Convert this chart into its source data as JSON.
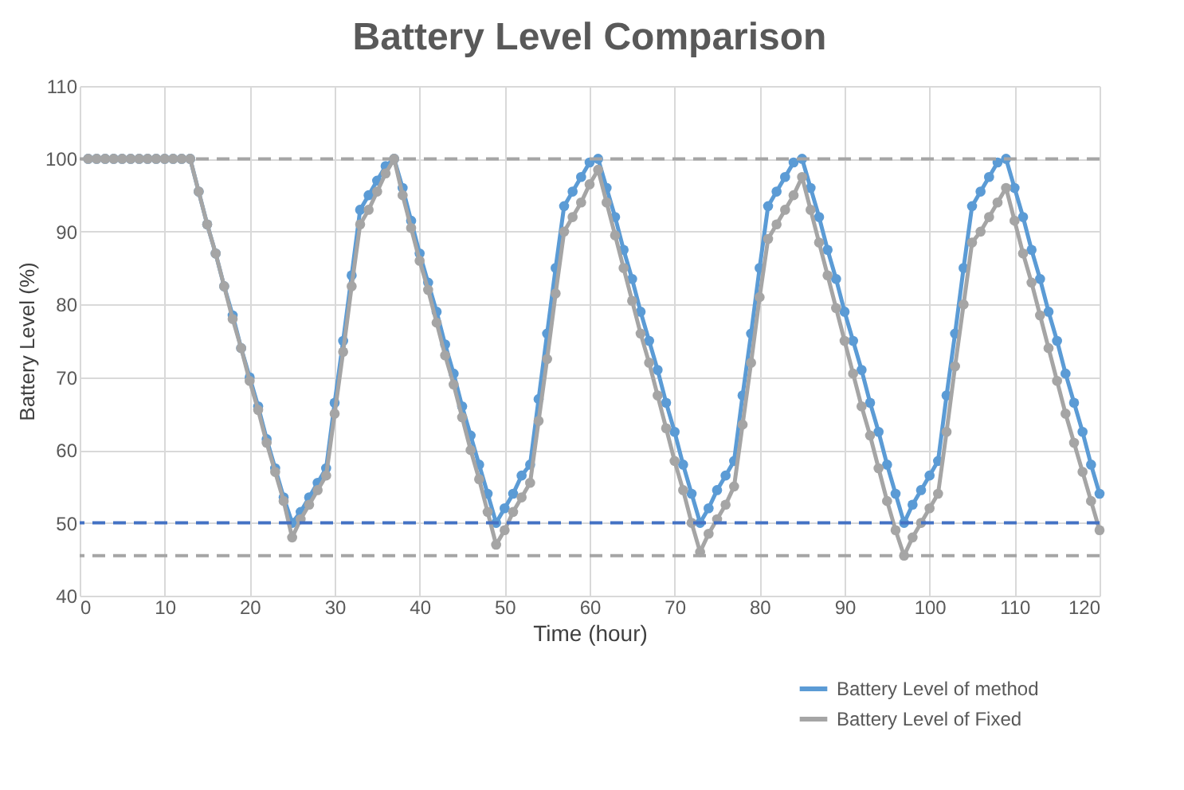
{
  "chart_data": {
    "type": "line",
    "title": "Battery Level Comparison",
    "xlabel": "Time (hour)",
    "ylabel": "Battery Level (%)",
    "x": [
      1,
      2,
      3,
      4,
      5,
      6,
      7,
      8,
      9,
      10,
      11,
      12,
      13,
      14,
      15,
      16,
      17,
      18,
      19,
      20,
      21,
      22,
      23,
      24,
      25,
      26,
      27,
      28,
      29,
      30,
      31,
      32,
      33,
      34,
      35,
      36,
      37,
      38,
      39,
      40,
      41,
      42,
      43,
      44,
      45,
      46,
      47,
      48,
      49,
      50,
      51,
      52,
      53,
      54,
      55,
      56,
      57,
      58,
      59,
      60,
      61,
      62,
      63,
      64,
      65,
      66,
      67,
      68,
      69,
      70,
      71,
      72,
      73,
      74,
      75,
      76,
      77,
      78,
      79,
      80,
      81,
      82,
      83,
      84,
      85,
      86,
      87,
      88,
      89,
      90,
      91,
      92,
      93,
      94,
      95,
      96,
      97,
      98,
      99,
      100,
      101,
      102,
      103,
      104,
      105,
      106,
      107,
      108,
      109,
      110,
      111,
      112,
      113,
      114,
      115,
      116,
      117,
      118,
      119,
      120
    ],
    "series": [
      {
        "name": "Battery Level of method",
        "color": "#5b9bd5",
        "values": [
          100,
          100,
          100,
          100,
          100,
          100,
          100,
          100,
          100,
          100,
          100,
          100,
          100,
          95.5,
          91,
          87,
          82.5,
          78.5,
          74,
          70,
          66,
          61.5,
          57.5,
          53.5,
          50,
          51.5,
          53.5,
          55.5,
          57.5,
          66.5,
          75,
          84,
          93,
          95,
          97,
          99,
          100,
          96,
          91.5,
          87,
          83,
          79,
          74.5,
          70.5,
          66,
          62,
          58,
          54,
          50,
          52,
          54,
          56.5,
          58,
          67,
          76,
          85,
          93.5,
          95.5,
          97.5,
          99.5,
          100,
          96,
          92,
          87.5,
          83.5,
          79,
          75,
          71,
          66.5,
          62.5,
          58,
          54,
          50,
          52,
          54.5,
          56.5,
          58.5,
          67.5,
          76,
          85,
          93.5,
          95.5,
          97.5,
          99.5,
          100,
          96,
          92,
          87.5,
          83.5,
          79,
          75,
          71,
          66.5,
          62.5,
          58,
          54,
          50,
          52.5,
          54.5,
          56.5,
          58.5,
          67.5,
          76,
          85,
          93.5,
          95.5,
          97.5,
          99.5,
          100,
          96,
          92,
          87.5,
          83.5,
          79,
          75,
          70.5,
          66.5,
          62.5,
          58,
          54
        ]
      },
      {
        "name": "Battery Level of Fixed",
        "color": "#a5a5a5",
        "values": [
          100,
          100,
          100,
          100,
          100,
          100,
          100,
          100,
          100,
          100,
          100,
          100,
          100,
          95.5,
          91,
          87,
          82.5,
          78,
          74,
          69.5,
          65.5,
          61,
          57,
          53,
          48,
          50.5,
          52.5,
          54.5,
          56.5,
          65,
          73.5,
          82.5,
          91,
          93,
          95.5,
          98,
          100,
          95,
          90.5,
          86,
          82,
          77.5,
          73,
          69,
          64.5,
          60,
          56,
          51.5,
          47,
          49,
          51.5,
          53.5,
          55.5,
          64,
          72.5,
          81.5,
          90,
          92,
          94,
          96.5,
          98.5,
          94,
          89.5,
          85,
          80.5,
          76,
          72,
          67.5,
          63,
          58.5,
          54.5,
          50,
          46,
          48.5,
          50.5,
          52.5,
          55,
          63.5,
          72,
          81,
          89,
          91,
          93,
          95,
          97.5,
          93,
          88.5,
          84,
          79.5,
          75,
          70.5,
          66,
          62,
          57.5,
          53,
          49,
          45.5,
          48,
          50,
          52,
          54,
          62.5,
          71.5,
          80,
          88.5,
          90,
          92,
          94,
          96,
          91.5,
          87,
          83,
          78.5,
          74,
          69.5,
          65,
          61,
          57,
          53,
          49
        ]
      }
    ],
    "ref_lines": [
      {
        "axis": "y",
        "value": 100,
        "color": "#a5a5a5",
        "line_style": "dashed"
      },
      {
        "axis": "y",
        "value": 50,
        "color": "#4472c4",
        "line_style": "dashed"
      },
      {
        "axis": "y",
        "value": 45.5,
        "color": "#a5a5a5",
        "line_style": "dashed"
      }
    ],
    "xlim": [
      0,
      120
    ],
    "xticks": [
      0,
      10,
      20,
      30,
      40,
      50,
      60,
      70,
      80,
      90,
      100,
      110,
      120
    ],
    "ylim": [
      40,
      110
    ],
    "yticks": [
      40,
      50,
      60,
      70,
      80,
      90,
      100,
      110
    ],
    "grid": true,
    "legend": "bottom right",
    "marker": "circle",
    "line_style": "solid"
  }
}
